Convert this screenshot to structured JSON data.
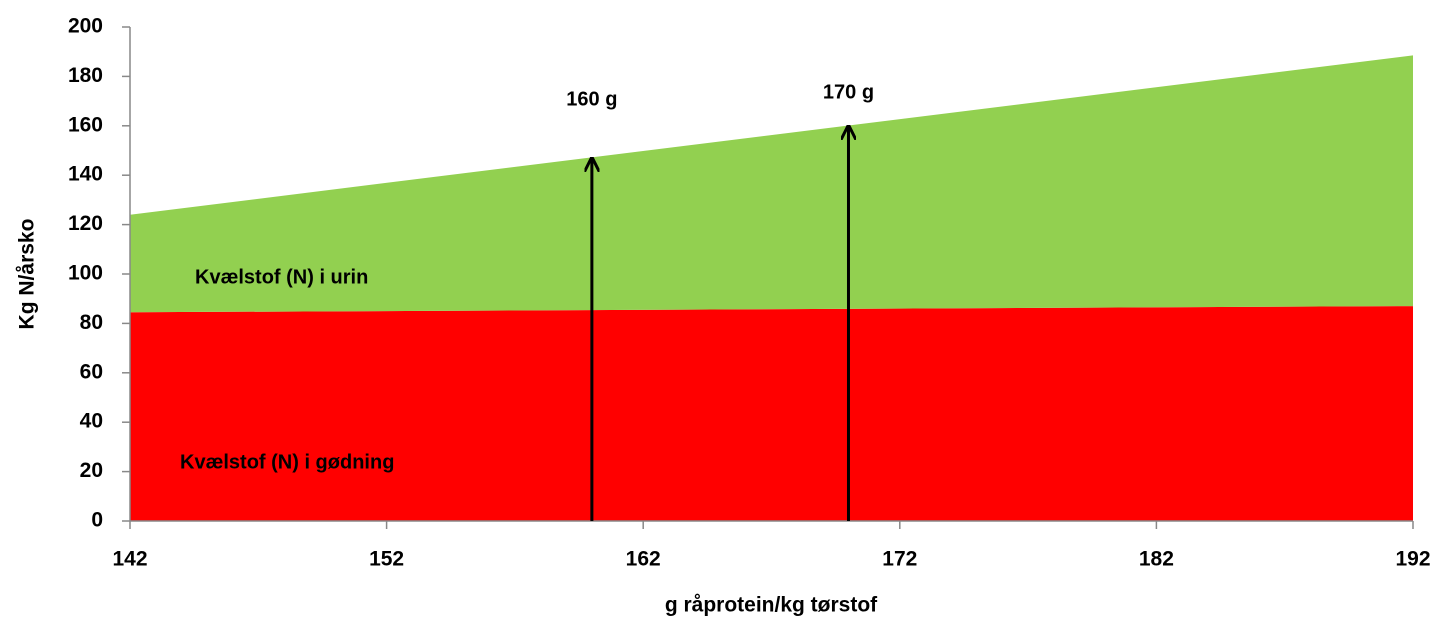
{
  "chart_data": {
    "type": "stacked_area",
    "x_label": "g råprotein/kg tørstof",
    "y_label": "Kg N/årsko",
    "x": [
      142,
      192
    ],
    "series": [
      {
        "name": "Kvælstof (N) i gødning",
        "color": "#ff0000",
        "values": [
          84.5,
          87
        ]
      },
      {
        "name": "Kvælstof (N) i urin",
        "color": "#92d050",
        "values": [
          39.5,
          101.5
        ]
      }
    ],
    "xlim": [
      142,
      192
    ],
    "xticks": [
      142,
      152,
      162,
      172,
      182,
      192
    ],
    "ylim": [
      0,
      200
    ],
    "yticks": [
      0,
      20,
      40,
      60,
      80,
      100,
      120,
      140,
      160,
      180,
      200
    ],
    "grid": false,
    "annotations": [
      {
        "text": "160 g",
        "x": 160,
        "y": 147
      },
      {
        "text": "170 g",
        "x": 170,
        "y": 160
      }
    ]
  }
}
